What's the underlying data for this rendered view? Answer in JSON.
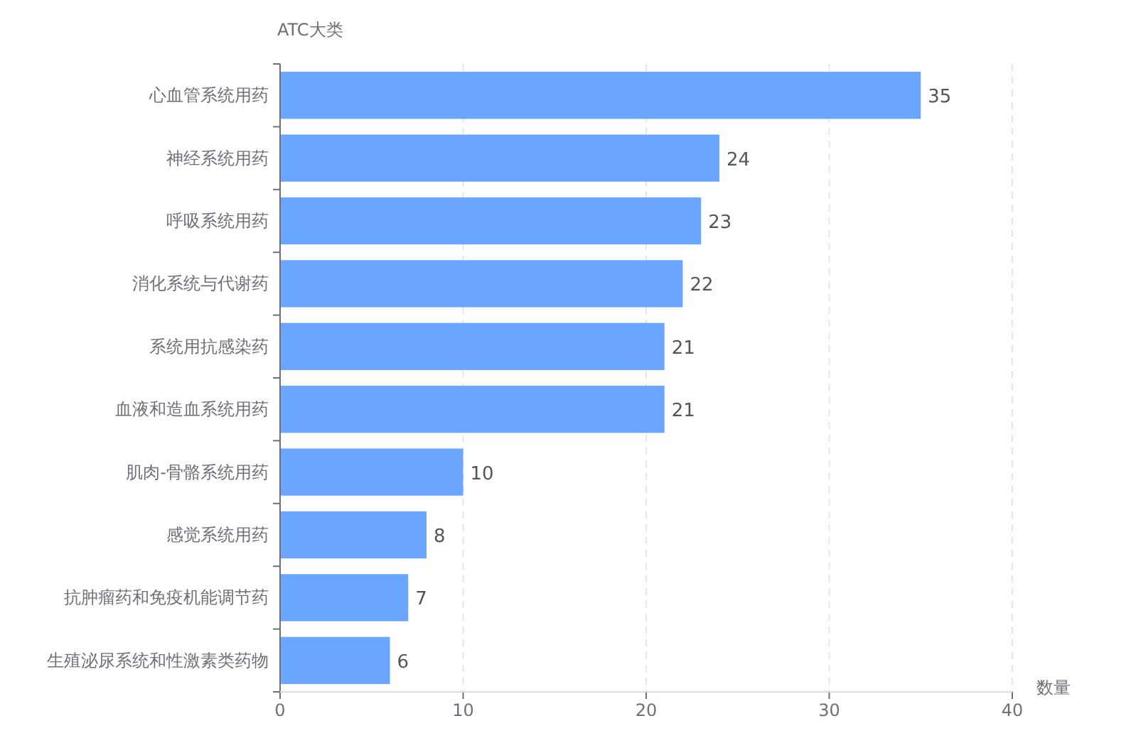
{
  "chart_data": {
    "type": "bar",
    "orientation": "horizontal",
    "ylabel": "ATC大类",
    "xlabel": "数量",
    "categories": [
      "心血管系统用药",
      "神经系统用药",
      "呼吸系统用药",
      "消化系统与代谢药",
      "系统用抗感染药",
      "血液和造血系统用药",
      "肌肉-骨骼系统用药",
      "感觉系统用药",
      "抗肿瘤药和免疫机能调节药",
      "生殖泌尿系统和性激素类药物"
    ],
    "values": [
      35,
      24,
      23,
      22,
      21,
      21,
      10,
      8,
      7,
      6
    ],
    "color": "#6aa6ff",
    "xlim": [
      0,
      40
    ],
    "xticks": [
      0,
      10,
      20,
      30,
      40
    ],
    "grid": "x",
    "data_labels": true
  }
}
